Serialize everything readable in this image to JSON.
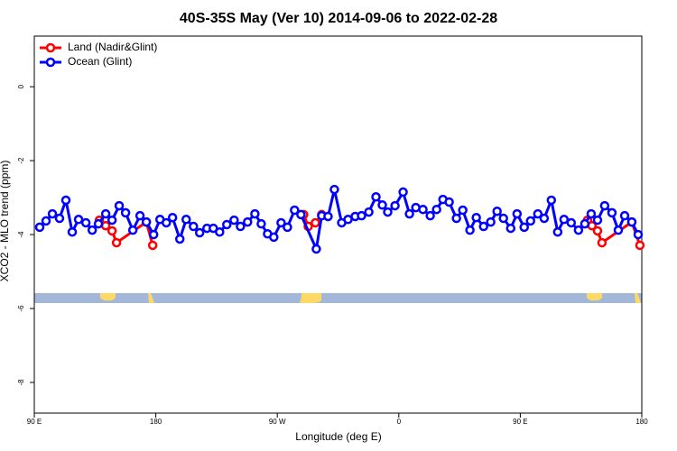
{
  "chart_data": {
    "type": "line",
    "title": "40S-35S May (Ver 10)   2014-09-06 to 2022-02-28",
    "x_label": "Longitude (deg E)",
    "y_label": "XCO2 - MLO trend (ppm)",
    "xlim": [
      90,
      540
    ],
    "ylim": [
      -8.83,
      1.37
    ],
    "xticks": [
      {
        "value": 90,
        "label": "90 E"
      },
      180,
      {
        "value": 270,
        "label": "90 W"
      },
      {
        "value": 360,
        "label": "0"
      },
      {
        "value": 450,
        "label": "90 E"
      },
      {
        "value": 540,
        "label": "180"
      }
    ],
    "yticks": [
      -8,
      -6,
      -4,
      -2,
      0
    ],
    "legend": "top-left",
    "series": [
      {
        "name": "Land (Nadir&Glint)",
        "color": "#ff0000",
        "x": [
          138.2,
          142.9,
          147.6,
          150.9,
          173.0,
          177.7,
          null,
          289.5,
          292.9,
          298.2,
          302.9,
          null,
          499.8,
          503.1,
          507.2,
          510.5,
          532.6,
          538.6
        ],
        "values": [
          -3.61,
          -3.76,
          -3.9,
          -4.22,
          -3.66,
          -4.29,
          null,
          -3.46,
          -3.78,
          -3.68,
          -3.46,
          null,
          -3.61,
          -3.76,
          -3.9,
          -4.22,
          -3.66,
          -4.29
        ]
      },
      {
        "name": "Ocean (Glint)",
        "color": "#0000ff",
        "x": [
          94.0,
          98.7,
          103.4,
          108.7,
          113.4,
          118.1,
          122.8,
          128.2,
          132.9,
          137.5,
          142.9,
          147.6,
          152.9,
          157.6,
          163.0,
          168.3,
          173.0,
          178.4,
          183.1,
          187.8,
          192.4,
          197.8,
          202.5,
          207.9,
          212.5,
          217.9,
          222.6,
          227.3,
          232.6,
          238.0,
          242.7,
          248.0,
          253.4,
          258.1,
          262.8,
          267.4,
          272.8,
          277.5,
          282.8,
          287.5,
          298.9,
          302.9,
          307.6,
          312.3,
          317.7,
          322.4,
          327.7,
          332.4,
          337.8,
          343.1,
          347.8,
          351.8,
          357.2,
          363.2,
          367.9,
          372.6,
          377.9,
          383.3,
          388.0,
          392.7,
          397.3,
          402.7,
          407.4,
          412.7,
          417.4,
          422.8,
          428.1,
          432.8,
          437.5,
          442.9,
          447.6,
          452.9,
          457.6,
          463.0,
          467.7,
          473.0,
          477.7,
          482.4,
          487.7,
          493.1,
          497.8,
          502.5,
          507.2,
          512.5,
          517.9,
          522.6,
          527.3,
          532.6,
          537.3
        ],
        "values": [
          -3.8,
          -3.63,
          -3.44,
          -3.56,
          -3.07,
          -3.93,
          -3.59,
          -3.68,
          -3.88,
          -3.71,
          -3.44,
          -3.61,
          -3.22,
          -3.41,
          -3.88,
          -3.49,
          -3.66,
          -4.0,
          -3.59,
          -3.68,
          -3.54,
          -4.12,
          -3.59,
          -3.78,
          -3.95,
          -3.83,
          -3.83,
          -3.93,
          -3.73,
          -3.61,
          -3.78,
          -3.66,
          -3.44,
          -3.71,
          -3.98,
          -4.07,
          -3.68,
          -3.8,
          -3.34,
          -3.46,
          -4.39,
          -3.49,
          -3.51,
          -2.78,
          -3.68,
          -3.59,
          -3.51,
          -3.49,
          -3.39,
          -2.98,
          -3.2,
          -3.39,
          -3.22,
          -2.85,
          -3.44,
          -3.27,
          -3.32,
          -3.49,
          -3.32,
          -3.05,
          -3.12,
          -3.56,
          -3.34,
          -3.88,
          -3.54,
          -3.78,
          -3.66,
          -3.37,
          -3.56,
          -3.83,
          -3.44,
          -3.8,
          -3.63,
          -3.44,
          -3.56,
          -3.07,
          -3.93,
          -3.59,
          -3.68,
          -3.88,
          -3.71,
          -3.44,
          -3.61,
          -3.22,
          -3.41,
          -3.88,
          -3.49,
          -3.66,
          -4.0
        ]
      }
    ]
  }
}
